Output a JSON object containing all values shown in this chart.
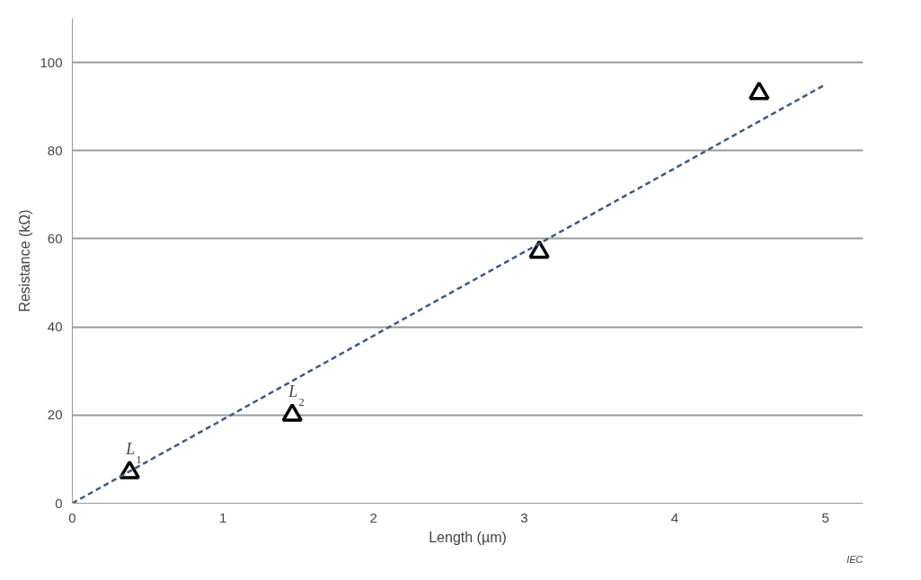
{
  "chart_data": {
    "type": "scatter",
    "xlabel": "Length (µm)",
    "ylabel": "Resistance (kΩ)",
    "xlim": [
      0,
      5.25
    ],
    "ylim": [
      0,
      110
    ],
    "xticks": [
      0,
      1,
      2,
      3,
      4,
      5
    ],
    "yticks": [
      0,
      20,
      40,
      60,
      80,
      100
    ],
    "grid": "y",
    "series": [
      {
        "color": "#000000",
        "marker": "triangle",
        "x": [
          0.38,
          1.46,
          3.1,
          4.56
        ],
        "values": [
          7,
          20,
          57,
          93
        ]
      },
      {
        "type": "line",
        "color": "#3c5a82",
        "line_style": "dashed",
        "x": [
          0,
          5
        ],
        "values": [
          0,
          95
        ]
      }
    ],
    "annotations": [
      {
        "text": "L$_{1}$",
        "x": 0.38,
        "y": 7
      },
      {
        "text": "L$_{2}$",
        "x": 1.46,
        "y": 20
      },
      "IEC"
    ]
  }
}
